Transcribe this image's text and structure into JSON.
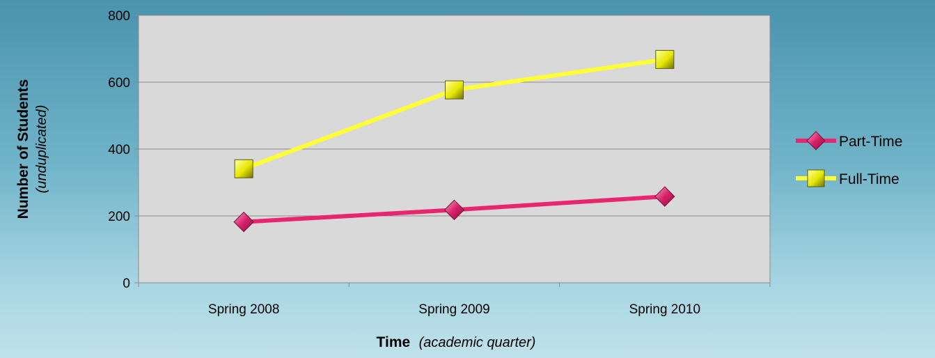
{
  "chart_data": {
    "type": "line",
    "categories": [
      "Spring 2008",
      "Spring 2009",
      "Spring 2010"
    ],
    "series": [
      {
        "name": "Part-Time",
        "values": [
          182,
          218,
          258
        ],
        "color": "#e8266e",
        "marker": "diamond"
      },
      {
        "name": "Full-Time",
        "values": [
          341,
          577,
          668
        ],
        "color": "#ffff33",
        "marker": "square"
      }
    ],
    "ylim": [
      0,
      800
    ],
    "yticks": [
      0,
      200,
      400,
      600,
      800
    ],
    "xlabel": {
      "bold": "Time",
      "italic": "(academic quarter)"
    },
    "ylabel": {
      "bold": "Number of Students",
      "italic": "(unduplicated)"
    },
    "legend_position": "right",
    "grid": true,
    "plot_background": "#d9d9d9"
  }
}
